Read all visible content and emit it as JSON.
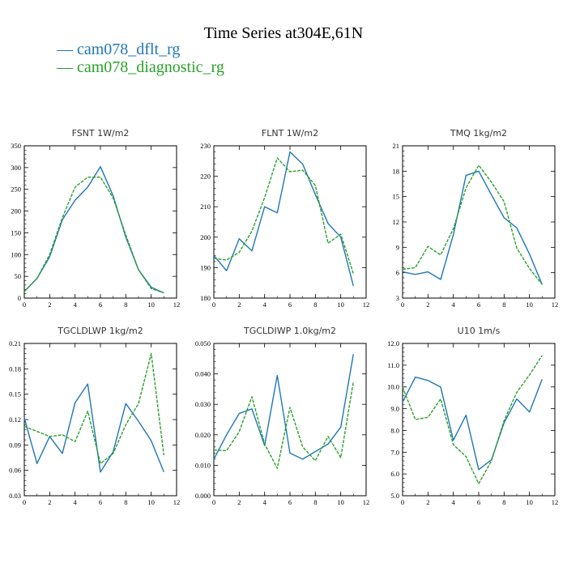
{
  "title": "Time Series at304E,61N",
  "colors": {
    "series1": "#1f77b4",
    "series2": "#2ca02c"
  },
  "chart_data": [
    {
      "type": "line",
      "title": "FSNT   1W/m2",
      "xlim": [
        0,
        12
      ],
      "xticks": [
        "0",
        "2",
        "4",
        "6",
        "8",
        "10",
        "12"
      ],
      "ylim": [
        0,
        350
      ],
      "yticks": [
        "0",
        "50",
        "100",
        "150",
        "200",
        "250",
        "300",
        "350"
      ],
      "x": [
        0,
        1,
        2,
        3,
        4,
        5,
        6,
        7,
        8,
        9,
        10,
        11
      ],
      "series": [
        {
          "name": "cam078_dflt_rg",
          "values": [
            15,
            45,
            95,
            180,
            225,
            255,
            302,
            235,
            140,
            65,
            25,
            12
          ]
        },
        {
          "name": "cam078_diagnostic_rg",
          "values": [
            15,
            45,
            100,
            185,
            255,
            278,
            278,
            230,
            145,
            65,
            22,
            12
          ]
        }
      ]
    },
    {
      "type": "line",
      "title": "FLNT   1W/m2",
      "xlim": [
        0,
        12
      ],
      "xticks": [
        "0",
        "2",
        "4",
        "6",
        "8",
        "10",
        "12"
      ],
      "ylim": [
        180,
        230
      ],
      "yticks": [
        "180",
        "190",
        "200",
        "210",
        "220",
        "230"
      ],
      "x": [
        0,
        1,
        2,
        3,
        4,
        5,
        6,
        7,
        8,
        9,
        10,
        11
      ],
      "series": [
        {
          "name": "cam078_dflt_rg",
          "values": [
            194,
            189,
            199.5,
            195.5,
            210,
            208,
            228,
            224,
            214,
            204.5,
            200,
            184
          ]
        },
        {
          "name": "cam078_diagnostic_rg",
          "values": [
            193,
            192.5,
            195,
            202,
            213,
            226,
            221.5,
            222,
            217,
            198,
            201,
            188
          ]
        }
      ]
    },
    {
      "type": "line",
      "title": "TMQ   1kg/m2",
      "xlim": [
        0,
        12
      ],
      "xticks": [
        "0",
        "2",
        "4",
        "6",
        "8",
        "10",
        "12"
      ],
      "ylim": [
        3,
        21
      ],
      "yticks": [
        "3",
        "6",
        "9",
        "12",
        "15",
        "18",
        "21"
      ],
      "x": [
        0,
        1,
        2,
        3,
        4,
        5,
        6,
        7,
        8,
        9,
        10,
        11
      ],
      "series": [
        {
          "name": "cam078_dflt_rg",
          "values": [
            6.1,
            5.8,
            6.1,
            5.2,
            10.5,
            17.5,
            18.0,
            15.2,
            12.5,
            11.3,
            8.2,
            4.6
          ]
        },
        {
          "name": "cam078_diagnostic_rg",
          "values": [
            6.4,
            6.6,
            9.1,
            8.1,
            11.2,
            16.0,
            18.7,
            16.7,
            14.4,
            8.9,
            6.5,
            4.6
          ]
        }
      ]
    },
    {
      "type": "line",
      "title": "TGCLDLWP   1kg/m2",
      "xlim": [
        0,
        12
      ],
      "xticks": [
        "0",
        "2",
        "4",
        "6",
        "8",
        "10",
        "12"
      ],
      "ylim": [
        0.03,
        0.21
      ],
      "yticks": [
        "0.03",
        "0.06",
        "0.09",
        "0.12",
        "0.15",
        "0.18",
        "0.21"
      ],
      "x": [
        0,
        1,
        2,
        3,
        4,
        5,
        6,
        7,
        8,
        9,
        10,
        11
      ],
      "series": [
        {
          "name": "cam078_dflt_rg",
          "values": [
            0.122,
            0.068,
            0.1,
            0.08,
            0.14,
            0.162,
            0.058,
            0.082,
            0.139,
            0.118,
            0.095,
            0.058
          ]
        },
        {
          "name": "cam078_diagnostic_rg",
          "values": [
            0.112,
            0.106,
            0.1,
            0.102,
            0.094,
            0.13,
            0.068,
            0.08,
            0.114,
            0.139,
            0.198,
            0.078
          ]
        }
      ]
    },
    {
      "type": "line",
      "title": "TGCLDIWP   1.0kg/m2",
      "xlim": [
        0,
        12
      ],
      "xticks": [
        "0",
        "2",
        "4",
        "6",
        "8",
        "10",
        "12"
      ],
      "ylim": [
        0.0,
        0.05
      ],
      "yticks": [
        "0.000",
        "0.010",
        "0.020",
        "0.030",
        "0.040",
        "0.050"
      ],
      "x": [
        0,
        1,
        2,
        3,
        4,
        5,
        6,
        7,
        8,
        9,
        10,
        11
      ],
      "series": [
        {
          "name": "cam078_dflt_rg",
          "values": [
            0.012,
            0.02,
            0.027,
            0.0285,
            0.0165,
            0.0395,
            0.014,
            0.012,
            0.0145,
            0.017,
            0.0225,
            0.0465
          ]
        },
        {
          "name": "cam078_diagnostic_rg",
          "values": [
            0.015,
            0.0148,
            0.021,
            0.0325,
            0.017,
            0.009,
            0.029,
            0.016,
            0.0115,
            0.0195,
            0.0125,
            0.0375
          ]
        }
      ]
    },
    {
      "type": "line",
      "title": "U10   1m/s",
      "xlim": [
        0,
        12
      ],
      "xticks": [
        "0",
        "2",
        "4",
        "6",
        "8",
        "10",
        "12"
      ],
      "ylim": [
        5.0,
        12.0
      ],
      "yticks": [
        "5.0",
        "6.0",
        "7.0",
        "8.0",
        "9.0",
        "10.0",
        "11.0",
        "12.0"
      ],
      "x": [
        0,
        1,
        2,
        3,
        4,
        5,
        6,
        7,
        8,
        9,
        10,
        11
      ],
      "series": [
        {
          "name": "cam078_dflt_rg",
          "values": [
            9.3,
            10.45,
            10.3,
            10.0,
            7.55,
            8.7,
            6.2,
            6.65,
            8.35,
            9.45,
            8.85,
            10.35
          ]
        },
        {
          "name": "cam078_diagnostic_rg",
          "values": [
            10.0,
            8.5,
            8.6,
            9.45,
            7.35,
            6.8,
            5.55,
            6.6,
            8.45,
            9.75,
            10.55,
            11.45
          ]
        }
      ]
    }
  ]
}
